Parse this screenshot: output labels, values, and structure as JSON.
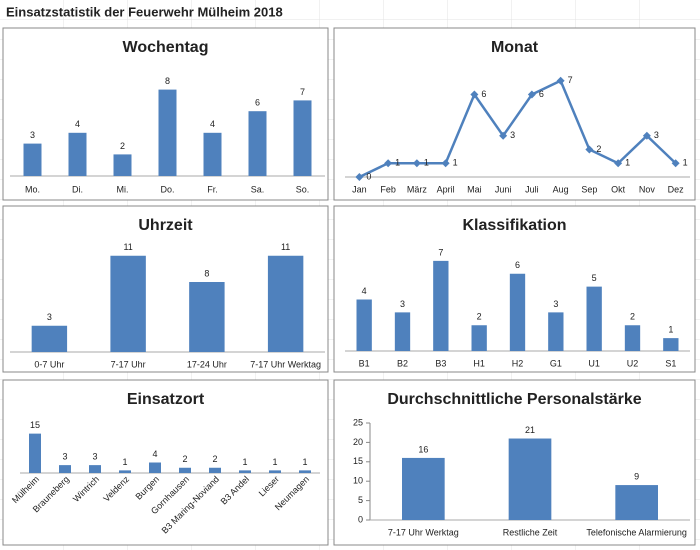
{
  "page_title": "Einsatzstatistik der Feuerwehr Mülheim 2018",
  "chart_data": [
    {
      "type": "bar",
      "title": "Wochentag",
      "categories": [
        "Mo.",
        "Di.",
        "Mi.",
        "Do.",
        "Fr.",
        "Sa.",
        "So."
      ],
      "values": [
        3,
        4,
        2,
        8,
        4,
        6,
        7
      ],
      "color": "#4f81bd",
      "ylim": [
        0,
        10
      ]
    },
    {
      "type": "line",
      "title": "Monat",
      "categories": [
        "Jan",
        "Feb",
        "März",
        "April",
        "Mai",
        "Juni",
        "Juli",
        "Aug",
        "Sep",
        "Okt",
        "Nov",
        "Dez"
      ],
      "values": [
        0,
        1,
        1,
        1,
        6,
        3,
        6,
        7,
        2,
        1,
        3,
        1
      ],
      "color": "#4f81bd",
      "marker": "diamond",
      "ylim": [
        0,
        8
      ]
    },
    {
      "type": "bar",
      "title": "Uhrzeit",
      "categories": [
        "0-7 Uhr",
        "7-17 Uhr",
        "17-24 Uhr",
        "7-17 Uhr Werktag"
      ],
      "values": [
        3,
        11,
        8,
        11
      ],
      "color": "#4f81bd",
      "ylim": [
        0,
        12
      ]
    },
    {
      "type": "bar",
      "title": "Klassifikation",
      "categories": [
        "B1",
        "B2",
        "B3",
        "H1",
        "H2",
        "G1",
        "U1",
        "U2",
        "S1"
      ],
      "values": [
        4,
        3,
        7,
        2,
        6,
        3,
        5,
        2,
        1
      ],
      "color": "#4f81bd",
      "ylim": [
        0,
        8
      ]
    },
    {
      "type": "bar",
      "title": "Einsatzort",
      "categories": [
        "Mülheim",
        "Brauneberg",
        "Wintrich",
        "Veldenz",
        "Burgen",
        "Gornhausen",
        "B3 Maring-Noviand",
        "B3 Andel",
        "Lieser",
        "Neumagen"
      ],
      "values": [
        15,
        3,
        3,
        1,
        4,
        2,
        2,
        1,
        1,
        1
      ],
      "color": "#4f81bd",
      "ylim": [
        0,
        16
      ]
    },
    {
      "type": "bar",
      "title": "Durchschnittliche Personalstärke",
      "categories": [
        "7-17 Uhr Werktag",
        "Restliche Zeit",
        "Telefonische Alarmierung"
      ],
      "values": [
        16,
        21,
        9
      ],
      "color": "#4f81bd",
      "ylim": [
        0,
        25
      ],
      "yticks": [
        0,
        5,
        10,
        15,
        20,
        25
      ]
    }
  ]
}
